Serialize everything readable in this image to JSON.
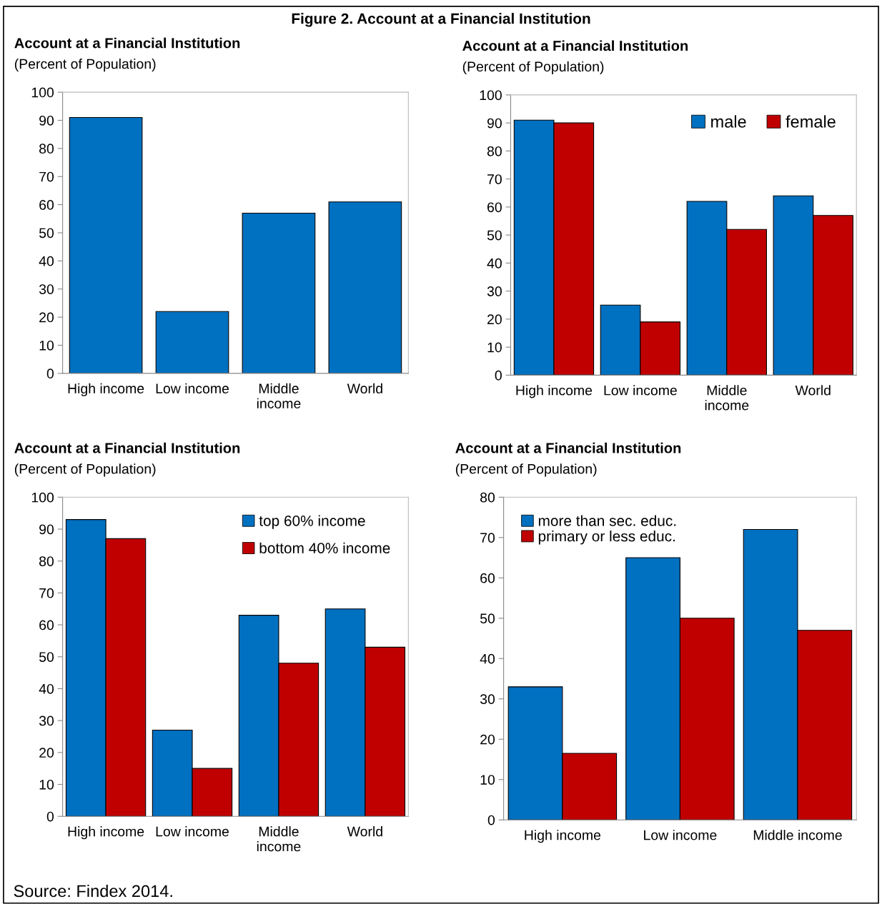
{
  "chart_data": [
    {
      "type": "bar",
      "title": "Account at a Financial Institution",
      "subtitle": "(Percent of Population)",
      "categories": [
        "High income",
        "Low income",
        "Middle\nincome",
        "World"
      ],
      "series": [
        {
          "color": "#0070c0",
          "values": [
            91,
            22,
            57,
            61
          ]
        }
      ],
      "ylim": [
        0,
        100
      ],
      "yticks": [
        0,
        10,
        20,
        30,
        40,
        50,
        60,
        70,
        80,
        90,
        100
      ],
      "grid": false,
      "legend": false,
      "annotations": [
        "Figure 2. Account at a Financial Institution"
      ]
    },
    {
      "type": "bar",
      "title": "Account at a Financial Institution",
      "subtitle": "(Percent of Population)",
      "categories": [
        "High income",
        "Low income",
        "Middle\nincome",
        "World"
      ],
      "series": [
        {
          "name": "male",
          "color": "#0070c0",
          "values": [
            91,
            25,
            62,
            64
          ]
        },
        {
          "name": "female",
          "color": "#c00000",
          "values": [
            90,
            19,
            52,
            57
          ]
        }
      ],
      "ylim": [
        0,
        100
      ],
      "yticks": [
        0,
        10,
        20,
        30,
        40,
        50,
        60,
        70,
        80,
        90,
        100
      ],
      "grid": false,
      "legend": "top right"
    },
    {
      "type": "bar",
      "title": "Account at a Financial Institution",
      "subtitle": "(Percent of Population)",
      "categories": [
        "High income",
        "Low income",
        "Middle\nincome",
        "World"
      ],
      "series": [
        {
          "name": "top 60% income",
          "color": "#0070c0",
          "values": [
            93,
            27,
            63,
            65
          ]
        },
        {
          "name": "bottom 40% income",
          "color": "#c00000",
          "values": [
            87,
            15,
            48,
            53
          ]
        }
      ],
      "ylim": [
        0,
        100
      ],
      "yticks": [
        0,
        10,
        20,
        30,
        40,
        50,
        60,
        70,
        80,
        90,
        100
      ],
      "grid": false,
      "legend": "top right"
    },
    {
      "type": "bar",
      "title": "Account at a Financial Institution",
      "subtitle": "(Percent of Population)",
      "categories": [
        "High income",
        "Low income",
        "Middle income"
      ],
      "series": [
        {
          "name": "more than sec. educ.",
          "color": "#0070c0",
          "values": [
            33,
            65,
            72
          ]
        },
        {
          "name": "primary or less educ.",
          "color": "#c00000",
          "values": [
            16.5,
            50,
            47
          ]
        }
      ],
      "ylim": [
        0,
        80
      ],
      "yticks": [
        0,
        10,
        20,
        30,
        40,
        50,
        60,
        70,
        80
      ],
      "grid": false,
      "legend": "top left",
      "annotations": [
        "Source: Findex 2014."
      ]
    }
  ]
}
